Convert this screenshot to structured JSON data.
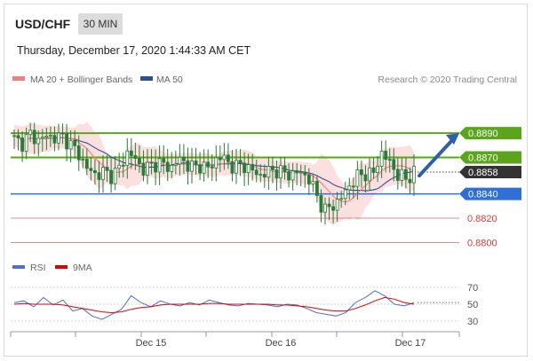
{
  "header": {
    "symbol": "USD/CHF",
    "timeframe": "30 MIN",
    "datetime": "Thursday, December 17, 2020 1:44:33 AM CET"
  },
  "legend": {
    "ma20_bb": {
      "label": "MA 20 + Bollinger Bands",
      "color": "#f08080"
    },
    "ma50": {
      "label": "MA 50",
      "color": "#2f4f8f"
    },
    "copyright": "Research © 2020 Trading Central",
    "rsi": {
      "label": "RSI",
      "color": "#4a6fd6"
    },
    "rsi_ma": {
      "label": "9MA",
      "color": "#e00000"
    }
  },
  "colors": {
    "resistance": "#5aa51b",
    "support": "#2f6fd6",
    "projection": "#2e5fa8",
    "bands": "#fbd5d5",
    "candle": "#2a7a3a",
    "minor_level": "#d04040",
    "current": "#333333"
  },
  "chart_data": {
    "type": "candlestick",
    "ylim": [
      0.8793,
      0.8912
    ],
    "x_tick_labels": [
      "Dec 15",
      "Dec 16",
      "Dec 17"
    ],
    "price_levels": [
      {
        "value": 0.889,
        "label": "0.8890",
        "kind": "resistance"
      },
      {
        "value": 0.887,
        "label": "0.8870",
        "kind": "resistance"
      },
      {
        "value": 0.8858,
        "label": "0.8858",
        "kind": "current"
      },
      {
        "value": 0.884,
        "label": "0.8840",
        "kind": "support"
      },
      {
        "value": 0.882,
        "label": "0.8820",
        "kind": "minor"
      },
      {
        "value": 0.88,
        "label": "0.8800",
        "kind": "minor"
      }
    ],
    "projection": {
      "from": 0.8855,
      "to": 0.889
    },
    "price_path": [
      0.8885,
      0.8882,
      0.8889,
      0.8884,
      0.8888,
      0.8886,
      0.8887,
      0.888,
      0.8872,
      0.886,
      0.8856,
      0.8858,
      0.8855,
      0.8862,
      0.8876,
      0.8866,
      0.886,
      0.8864,
      0.8866,
      0.886,
      0.8868,
      0.8866,
      0.8861,
      0.8864,
      0.886,
      0.8872,
      0.8867,
      0.8862,
      0.8864,
      0.886,
      0.8855,
      0.8858,
      0.886,
      0.8857,
      0.8856,
      0.8858,
      0.8854,
      0.884,
      0.8826,
      0.883,
      0.8836,
      0.8846,
      0.8854,
      0.8857,
      0.8856,
      0.8874,
      0.8866,
      0.8856,
      0.8852,
      0.8858
    ],
    "rsi": {
      "ticks": [
        70,
        50,
        30
      ],
      "values": [
        52,
        54,
        47,
        58,
        49,
        55,
        42,
        45,
        36,
        32,
        38,
        44,
        60,
        52,
        47,
        54,
        50,
        48,
        52,
        49,
        55,
        52,
        49,
        48,
        51,
        50,
        49,
        47,
        50,
        49,
        45,
        40,
        38,
        36,
        40,
        52,
        58,
        66,
        60,
        50,
        48,
        52
      ],
      "ma": [
        50,
        51,
        50,
        50,
        50,
        49,
        47,
        45,
        43,
        41,
        40,
        41,
        44,
        46,
        47,
        49,
        50,
        50,
        50,
        50,
        51,
        51,
        50,
        50,
        50,
        50,
        50,
        49,
        49,
        48,
        47,
        45,
        43,
        42,
        42,
        45,
        49,
        54,
        58,
        56,
        52,
        50
      ]
    }
  }
}
